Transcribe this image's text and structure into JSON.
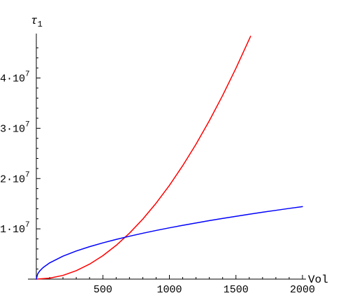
{
  "chart_data": {
    "type": "line",
    "title": "",
    "xlabel": "Vol",
    "ylabel": "τ",
    "ylabel_subscript": "1",
    "xlim": [
      0,
      2000
    ],
    "ylim": [
      0,
      48000000
    ],
    "grid": false,
    "legend": "none",
    "x_ticks": [
      {
        "value": 500,
        "label": "500"
      },
      {
        "value": 1000,
        "label": "1000"
      },
      {
        "value": 1500,
        "label": "1500"
      },
      {
        "value": 2000,
        "label": "2000"
      }
    ],
    "y_ticks": [
      {
        "value": 10000000,
        "mantissa": "1·10",
        "exponent": "7"
      },
      {
        "value": 20000000,
        "mantissa": "2·10",
        "exponent": "7"
      },
      {
        "value": 30000000,
        "mantissa": "3·10",
        "exponent": "7"
      },
      {
        "value": 40000000,
        "mantissa": "4·10",
        "exponent": "7"
      }
    ],
    "series": [
      {
        "color": "#ff0000",
        "x": [
          0,
          100,
          200,
          300,
          400,
          500,
          600,
          700,
          800,
          900,
          1000,
          1100,
          1200,
          1300,
          1400,
          1500,
          1600,
          1610
        ],
        "y": [
          0,
          190000,
          740000,
          1680000,
          2980000,
          4660000,
          6710000,
          9140000,
          11930000,
          15100000,
          18640000,
          22560000,
          26840000,
          31500000,
          36530000,
          41940000,
          47720000,
          48300000
        ]
      },
      {
        "color": "#0000ff",
        "x": [
          0,
          10,
          25,
          50,
          100,
          200,
          300,
          400,
          500,
          600,
          700,
          800,
          900,
          1000,
          1100,
          1200,
          1300,
          1400,
          1500,
          1600,
          1700,
          1800,
          1900,
          2000
        ],
        "y": [
          0,
          1020000,
          1610000,
          2280000,
          3230000,
          4560000,
          5590000,
          6450000,
          7210000,
          7900000,
          8530000,
          9120000,
          9680000,
          10200000,
          10700000,
          11170000,
          11630000,
          12070000,
          12490000,
          12900000,
          13300000,
          13680000,
          14060000,
          14420000
        ]
      }
    ]
  }
}
